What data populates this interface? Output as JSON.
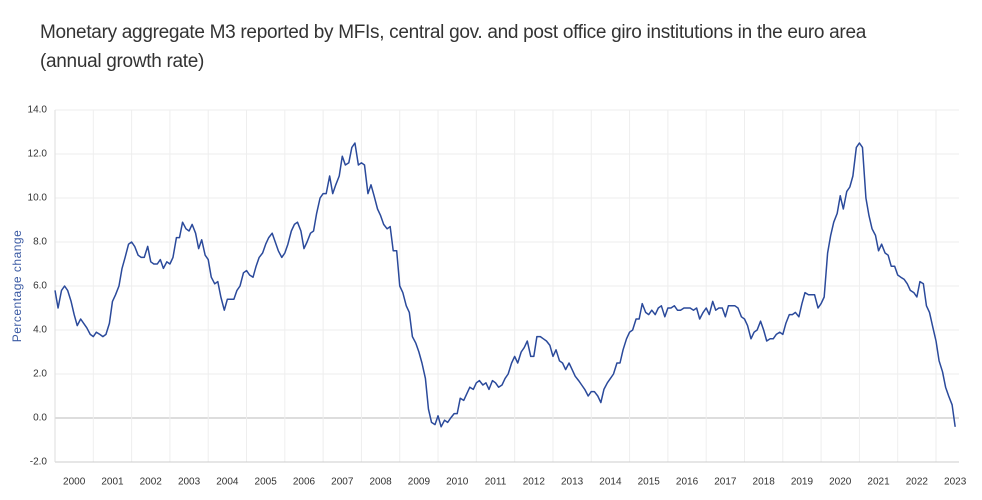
{
  "chart_data": {
    "type": "line",
    "title": "Monetary aggregate M3 reported by MFIs, central gov. and post office giro institutions in the euro area (annual growth rate)",
    "ylabel": "Percentage change",
    "color": "#2b4a9b",
    "grid": true,
    "xlim": [
      2000,
      2023.6
    ],
    "xticks": [
      2000,
      2001,
      2002,
      2003,
      2004,
      2005,
      2006,
      2007,
      2008,
      2009,
      2010,
      2011,
      2012,
      2013,
      2014,
      2015,
      2016,
      2017,
      2018,
      2019,
      2020,
      2021,
      2022,
      2023
    ],
    "ylim": [
      -2,
      14
    ],
    "yticks": [
      {
        "value": -2,
        "label": "-2.0"
      },
      {
        "value": 0,
        "label": "0.0"
      },
      {
        "value": 2,
        "label": "2.0"
      },
      {
        "value": 4,
        "label": "4.0"
      },
      {
        "value": 6,
        "label": "6.0"
      },
      {
        "value": 8,
        "label": "8.0"
      },
      {
        "value": 10,
        "label": "10.0"
      },
      {
        "value": 12,
        "label": "12.0"
      },
      {
        "value": 14,
        "label": "14.0"
      }
    ],
    "x": [
      2000,
      2000.08,
      2000.17,
      2000.25,
      2000.33,
      2000.42,
      2000.5,
      2000.58,
      2000.67,
      2000.75,
      2000.83,
      2000.92,
      2001,
      2001.08,
      2001.17,
      2001.25,
      2001.33,
      2001.42,
      2001.5,
      2001.58,
      2001.67,
      2001.75,
      2001.83,
      2001.92,
      2002,
      2002.08,
      2002.17,
      2002.25,
      2002.33,
      2002.42,
      2002.5,
      2002.58,
      2002.67,
      2002.75,
      2002.83,
      2002.92,
      2003,
      2003.08,
      2003.17,
      2003.25,
      2003.33,
      2003.42,
      2003.5,
      2003.58,
      2003.67,
      2003.75,
      2003.83,
      2003.92,
      2004,
      2004.08,
      2004.17,
      2004.25,
      2004.33,
      2004.42,
      2004.5,
      2004.58,
      2004.67,
      2004.75,
      2004.83,
      2004.92,
      2005,
      2005.08,
      2005.17,
      2005.25,
      2005.33,
      2005.42,
      2005.5,
      2005.58,
      2005.67,
      2005.75,
      2005.83,
      2005.92,
      2006,
      2006.08,
      2006.17,
      2006.25,
      2006.33,
      2006.42,
      2006.5,
      2006.58,
      2006.67,
      2006.75,
      2006.83,
      2006.92,
      2007,
      2007.08,
      2007.17,
      2007.25,
      2007.33,
      2007.42,
      2007.5,
      2007.58,
      2007.67,
      2007.75,
      2007.83,
      2007.92,
      2008,
      2008.08,
      2008.17,
      2008.25,
      2008.33,
      2008.42,
      2008.5,
      2008.58,
      2008.67,
      2008.75,
      2008.83,
      2008.92,
      2009,
      2009.08,
      2009.17,
      2009.25,
      2009.33,
      2009.42,
      2009.5,
      2009.58,
      2009.67,
      2009.75,
      2009.83,
      2009.92,
      2010,
      2010.08,
      2010.17,
      2010.25,
      2010.33,
      2010.42,
      2010.5,
      2010.58,
      2010.67,
      2010.75,
      2010.83,
      2010.92,
      2011,
      2011.08,
      2011.17,
      2011.25,
      2011.33,
      2011.42,
      2011.5,
      2011.58,
      2011.67,
      2011.75,
      2011.83,
      2011.92,
      2012,
      2012.08,
      2012.17,
      2012.25,
      2012.33,
      2012.42,
      2012.5,
      2012.58,
      2012.67,
      2012.75,
      2012.83,
      2012.92,
      2013,
      2013.08,
      2013.17,
      2013.25,
      2013.33,
      2013.42,
      2013.5,
      2013.58,
      2013.67,
      2013.75,
      2013.83,
      2013.92,
      2014,
      2014.08,
      2014.17,
      2014.25,
      2014.33,
      2014.42,
      2014.5,
      2014.58,
      2014.67,
      2014.75,
      2014.83,
      2014.92,
      2015,
      2015.08,
      2015.17,
      2015.25,
      2015.33,
      2015.42,
      2015.5,
      2015.58,
      2015.67,
      2015.75,
      2015.83,
      2015.92,
      2016,
      2016.08,
      2016.17,
      2016.25,
      2016.33,
      2016.42,
      2016.5,
      2016.58,
      2016.67,
      2016.75,
      2016.83,
      2016.92,
      2017,
      2017.08,
      2017.17,
      2017.25,
      2017.33,
      2017.42,
      2017.5,
      2017.58,
      2017.67,
      2017.75,
      2017.83,
      2017.92,
      2018,
      2018.08,
      2018.17,
      2018.25,
      2018.33,
      2018.42,
      2018.5,
      2018.58,
      2018.67,
      2018.75,
      2018.83,
      2018.92,
      2019,
      2019.08,
      2019.17,
      2019.25,
      2019.33,
      2019.42,
      2019.5,
      2019.58,
      2019.67,
      2019.75,
      2019.83,
      2019.92,
      2020,
      2020.08,
      2020.17,
      2020.25,
      2020.33,
      2020.42,
      2020.5,
      2020.58,
      2020.67,
      2020.75,
      2020.83,
      2020.92,
      2021,
      2021.08,
      2021.17,
      2021.25,
      2021.33,
      2021.42,
      2021.5,
      2021.58,
      2021.67,
      2021.75,
      2021.83,
      2021.92,
      2022,
      2022.08,
      2022.17,
      2022.25,
      2022.33,
      2022.42,
      2022.5,
      2022.58,
      2022.67,
      2022.75,
      2022.83,
      2022.92,
      2023,
      2023.08,
      2023.17,
      2023.25,
      2023.33,
      2023.42,
      2023.5
    ],
    "values": [
      5.8,
      5.0,
      5.8,
      6.0,
      5.8,
      5.3,
      4.7,
      4.2,
      4.5,
      4.3,
      4.1,
      3.8,
      3.7,
      3.9,
      3.8,
      3.7,
      3.8,
      4.3,
      5.3,
      5.6,
      6.0,
      6.8,
      7.3,
      7.9,
      8.0,
      7.8,
      7.4,
      7.3,
      7.3,
      7.8,
      7.1,
      7.0,
      7.0,
      7.2,
      6.8,
      7.1,
      7.0,
      7.3,
      8.2,
      8.2,
      8.9,
      8.6,
      8.5,
      8.8,
      8.4,
      7.7,
      8.1,
      7.4,
      7.2,
      6.4,
      6.1,
      6.2,
      5.5,
      4.9,
      5.4,
      5.4,
      5.4,
      5.8,
      6.0,
      6.6,
      6.7,
      6.5,
      6.4,
      6.9,
      7.3,
      7.5,
      7.9,
      8.2,
      8.4,
      8.0,
      7.6,
      7.3,
      7.5,
      7.9,
      8.5,
      8.8,
      8.9,
      8.5,
      7.7,
      8.0,
      8.4,
      8.5,
      9.3,
      10.0,
      10.2,
      10.2,
      11.0,
      10.2,
      10.6,
      11.0,
      11.9,
      11.5,
      11.6,
      12.3,
      12.5,
      11.5,
      11.6,
      11.5,
      10.2,
      10.6,
      10.1,
      9.5,
      9.2,
      8.8,
      8.6,
      8.7,
      7.6,
      7.6,
      6.0,
      5.7,
      5.1,
      4.8,
      3.7,
      3.4,
      3.0,
      2.5,
      1.8,
      0.4,
      -0.2,
      -0.3,
      0.1,
      -0.4,
      -0.1,
      -0.2,
      0.0,
      0.2,
      0.2,
      0.9,
      0.8,
      1.1,
      1.4,
      1.3,
      1.6,
      1.7,
      1.5,
      1.6,
      1.3,
      1.7,
      1.6,
      1.4,
      1.5,
      1.8,
      2.0,
      2.5,
      2.8,
      2.5,
      3.0,
      3.2,
      3.5,
      2.8,
      2.8,
      3.7,
      3.7,
      3.6,
      3.5,
      3.3,
      2.8,
      3.1,
      2.6,
      2.5,
      2.2,
      2.5,
      2.2,
      1.9,
      1.7,
      1.5,
      1.3,
      1.0,
      1.2,
      1.2,
      1.0,
      0.7,
      1.3,
      1.6,
      1.8,
      2.0,
      2.5,
      2.5,
      3.1,
      3.6,
      3.9,
      4.0,
      4.5,
      4.5,
      5.2,
      4.8,
      4.7,
      4.9,
      4.7,
      5.0,
      5.1,
      4.6,
      5.0,
      5.0,
      5.1,
      4.9,
      4.9,
      5.0,
      5.0,
      5.0,
      4.9,
      5.0,
      4.5,
      4.8,
      5.0,
      4.7,
      5.3,
      4.9,
      5.0,
      5.0,
      4.6,
      5.1,
      5.1,
      5.1,
      5.0,
      4.6,
      4.5,
      4.2,
      3.6,
      3.9,
      4.0,
      4.4,
      4.0,
      3.5,
      3.6,
      3.6,
      3.8,
      3.9,
      3.8,
      4.3,
      4.7,
      4.7,
      4.8,
      4.6,
      5.2,
      5.7,
      5.6,
      5.6,
      5.6,
      5.0,
      5.2,
      5.5,
      7.5,
      8.3,
      8.9,
      9.3,
      10.1,
      9.5,
      10.3,
      10.5,
      11.0,
      12.3,
      12.5,
      12.3,
      10.0,
      9.2,
      8.6,
      8.3,
      7.6,
      7.9,
      7.5,
      7.4,
      6.9,
      6.9,
      6.5,
      6.4,
      6.3,
      6.1,
      5.8,
      5.7,
      5.5,
      6.2,
      6.1,
      5.1,
      4.8,
      4.1,
      3.5,
      2.6,
      2.1,
      1.4,
      1.0,
      0.6,
      -0.4
    ]
  }
}
